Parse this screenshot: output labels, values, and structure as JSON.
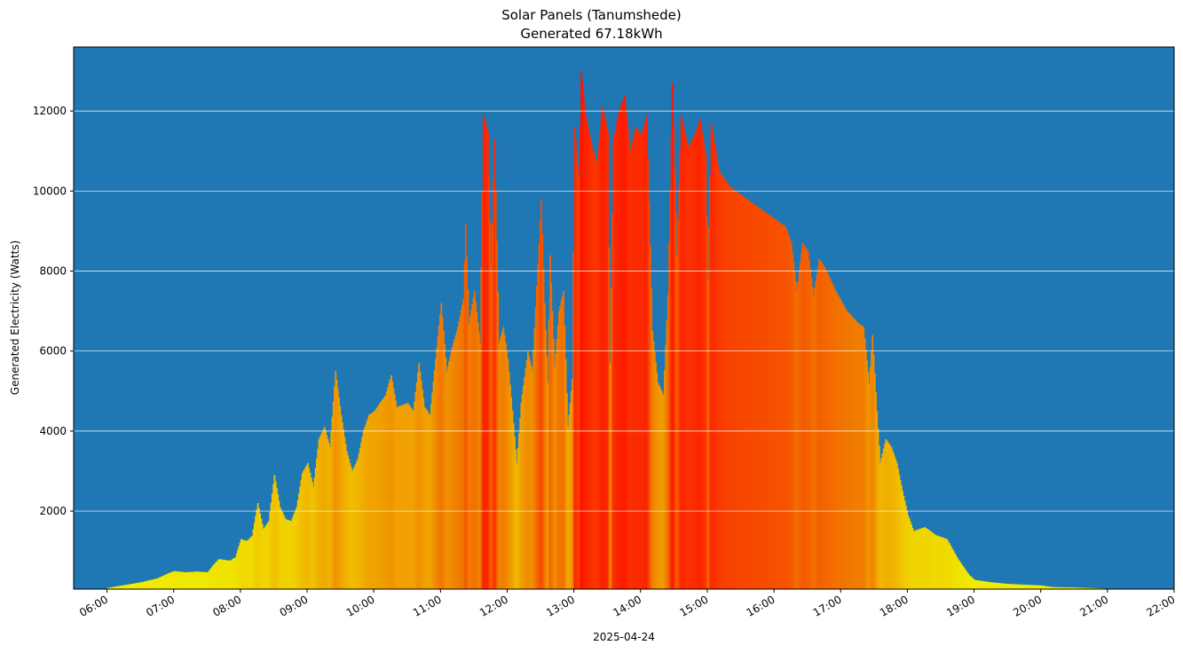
{
  "chart_data": {
    "type": "bar",
    "title": "Solar Panels (Tanumshede)",
    "subtitle": "Generated 67.18kWh",
    "ylabel": "Generated Electricity (Watts)",
    "xlabel": "2025-04-24",
    "background_color": "#1f77b4",
    "grid": "horizontal",
    "grid_color": "#ffffff",
    "color_scale": {
      "low": "#f0f000",
      "mid": "#f08000",
      "high": "#ff1000",
      "max_watts": 13000
    },
    "ylim": [
      50,
      13600
    ],
    "xlim": [
      "05:30",
      "22:00"
    ],
    "yticks": [
      2000,
      4000,
      6000,
      8000,
      10000,
      12000
    ],
    "ytick_labels": [
      "2000",
      "4000",
      "6000",
      "8000",
      "10000",
      "12000"
    ],
    "xticks": [
      "06:00",
      "07:00",
      "08:00",
      "09:00",
      "10:00",
      "11:00",
      "12:00",
      "13:00",
      "14:00",
      "15:00",
      "16:00",
      "17:00",
      "18:00",
      "19:00",
      "20:00",
      "21:00",
      "22:00"
    ],
    "profile": [
      [
        "06:00",
        80
      ],
      [
        "06:15",
        150
      ],
      [
        "06:30",
        220
      ],
      [
        "06:45",
        320
      ],
      [
        "06:55",
        450
      ],
      [
        "07:00",
        500
      ],
      [
        "07:10",
        470
      ],
      [
        "07:20",
        490
      ],
      [
        "07:30",
        470
      ],
      [
        "07:35",
        650
      ],
      [
        "07:40",
        800
      ],
      [
        "07:50",
        760
      ],
      [
        "07:55",
        850
      ],
      [
        "08:00",
        1300
      ],
      [
        "08:05",
        1250
      ],
      [
        "08:10",
        1380
      ],
      [
        "08:15",
        2200
      ],
      [
        "08:20",
        1550
      ],
      [
        "08:25",
        1750
      ],
      [
        "08:30",
        2900
      ],
      [
        "08:35",
        2100
      ],
      [
        "08:40",
        1800
      ],
      [
        "08:45",
        1750
      ],
      [
        "08:50",
        2100
      ],
      [
        "08:55",
        2950
      ],
      [
        "09:00",
        3200
      ],
      [
        "09:05",
        2600
      ],
      [
        "09:10",
        3800
      ],
      [
        "09:15",
        4100
      ],
      [
        "09:20",
        3600
      ],
      [
        "09:25",
        5500
      ],
      [
        "09:30",
        4400
      ],
      [
        "09:35",
        3500
      ],
      [
        "09:40",
        3000
      ],
      [
        "09:45",
        3300
      ],
      [
        "09:50",
        4000
      ],
      [
        "09:55",
        4400
      ],
      [
        "10:00",
        4500
      ],
      [
        "10:05",
        4700
      ],
      [
        "10:10",
        4900
      ],
      [
        "10:15",
        5400
      ],
      [
        "10:20",
        4600
      ],
      [
        "10:30",
        4700
      ],
      [
        "10:35",
        4500
      ],
      [
        "10:40",
        5700
      ],
      [
        "10:45",
        4600
      ],
      [
        "10:50",
        4400
      ],
      [
        "10:55",
        5800
      ],
      [
        "11:00",
        7200
      ],
      [
        "11:05",
        5500
      ],
      [
        "11:10",
        6100
      ],
      [
        "11:15",
        6600
      ],
      [
        "11:20",
        7300
      ],
      [
        "11:22",
        9200
      ],
      [
        "11:25",
        6700
      ],
      [
        "11:30",
        7500
      ],
      [
        "11:35",
        6200
      ],
      [
        "11:38",
        11900
      ],
      [
        "11:42",
        11500
      ],
      [
        "11:45",
        8100
      ],
      [
        "11:48",
        11300
      ],
      [
        "11:52",
        6200
      ],
      [
        "11:56",
        6600
      ],
      [
        "12:00",
        5800
      ],
      [
        "12:05",
        4200
      ],
      [
        "12:08",
        3200
      ],
      [
        "12:12",
        4700
      ],
      [
        "12:18",
        6000
      ],
      [
        "12:22",
        5500
      ],
      [
        "12:28",
        8700
      ],
      [
        "12:30",
        9800
      ],
      [
        "12:33",
        7200
      ],
      [
        "12:36",
        5200
      ],
      [
        "12:38",
        8400
      ],
      [
        "12:42",
        5600
      ],
      [
        "12:46",
        7000
      ],
      [
        "12:50",
        7500
      ],
      [
        "12:54",
        4100
      ],
      [
        "12:58",
        5300
      ],
      [
        "13:00",
        11600
      ],
      [
        "13:04",
        10300
      ],
      [
        "13:06",
        13000
      ],
      [
        "13:10",
        11900
      ],
      [
        "13:15",
        11200
      ],
      [
        "13:20",
        10700
      ],
      [
        "13:25",
        12100
      ],
      [
        "13:30",
        11500
      ],
      [
        "13:32",
        5700
      ],
      [
        "13:35",
        11300
      ],
      [
        "13:40",
        12000
      ],
      [
        "13:45",
        12400
      ],
      [
        "13:50",
        11000
      ],
      [
        "13:55",
        11600
      ],
      [
        "14:00",
        11400
      ],
      [
        "14:05",
        11900
      ],
      [
        "14:10",
        6500
      ],
      [
        "14:15",
        5200
      ],
      [
        "14:20",
        4900
      ],
      [
        "14:24",
        7400
      ],
      [
        "14:28",
        12700
      ],
      [
        "14:32",
        8400
      ],
      [
        "14:36",
        11900
      ],
      [
        "14:42",
        11100
      ],
      [
        "14:48",
        11400
      ],
      [
        "14:53",
        11800
      ],
      [
        "14:58",
        10900
      ],
      [
        "15:00",
        7800
      ],
      [
        "15:03",
        11700
      ],
      [
        "15:10",
        10500
      ],
      [
        "15:20",
        10100
      ],
      [
        "15:30",
        9900
      ],
      [
        "15:40",
        9700
      ],
      [
        "15:50",
        9500
      ],
      [
        "16:00",
        9300
      ],
      [
        "16:10",
        9100
      ],
      [
        "16:15",
        8700
      ],
      [
        "16:20",
        7500
      ],
      [
        "16:25",
        8700
      ],
      [
        "16:30",
        8500
      ],
      [
        "16:35",
        7400
      ],
      [
        "16:40",
        8300
      ],
      [
        "16:45",
        8100
      ],
      [
        "16:55",
        7500
      ],
      [
        "17:05",
        7000
      ],
      [
        "17:15",
        6700
      ],
      [
        "17:20",
        6600
      ],
      [
        "17:25",
        5200
      ],
      [
        "17:28",
        6400
      ],
      [
        "17:32",
        4500
      ],
      [
        "17:35",
        3200
      ],
      [
        "17:40",
        3800
      ],
      [
        "17:45",
        3600
      ],
      [
        "17:50",
        3200
      ],
      [
        "17:55",
        2500
      ],
      [
        "18:00",
        1900
      ],
      [
        "18:05",
        1500
      ],
      [
        "18:15",
        1600
      ],
      [
        "18:25",
        1400
      ],
      [
        "18:35",
        1300
      ],
      [
        "18:45",
        800
      ],
      [
        "18:55",
        400
      ],
      [
        "19:00",
        280
      ],
      [
        "19:15",
        220
      ],
      [
        "19:30",
        180
      ],
      [
        "19:45",
        160
      ],
      [
        "20:00",
        140
      ],
      [
        "20:10",
        100
      ],
      [
        "20:30",
        90
      ],
      [
        "21:00",
        60
      ],
      [
        "21:30",
        50
      ],
      [
        "21:55",
        40
      ]
    ]
  }
}
